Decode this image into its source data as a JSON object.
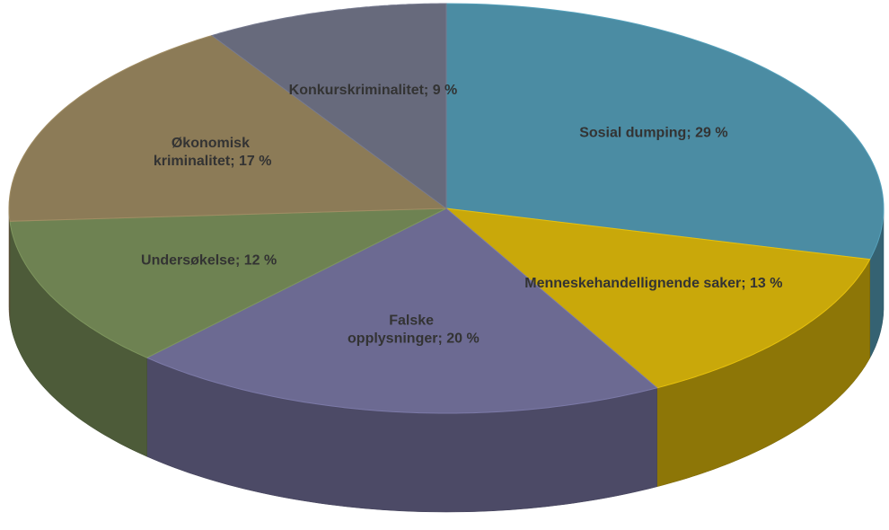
{
  "chart_data": {
    "type": "pie3d",
    "values": [
      29,
      13,
      20,
      12,
      17,
      9
    ],
    "value_labels": [
      "Sosial dumping; 29 %",
      "Menneskehandellignende saker; 13 %",
      "Falske opplysninger; 20 %",
      "Undersøkelse; 12 %",
      "Økonomisk kriminalitet; 17 %",
      "Konkurskriminalitet; 9 %"
    ],
    "colors": [
      "#4b8ca3",
      "#c9a80a",
      "#6c6a92",
      "#6e8252",
      "#8c7b57",
      "#676a7c"
    ]
  }
}
